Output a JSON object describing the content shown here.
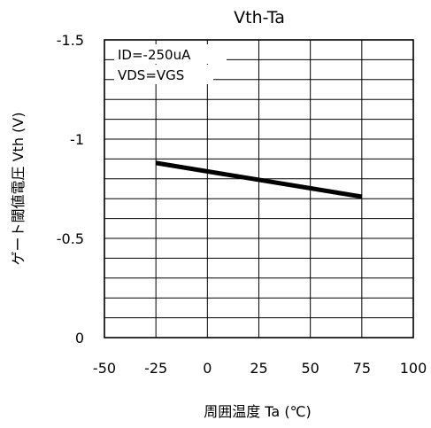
{
  "chart_data": {
    "type": "line",
    "title": "Vth-Ta",
    "xlabel": "周囲温度 Ta (℃)",
    "ylabel": "ゲート閾値電圧 Vth (V)",
    "xlim": [
      -50,
      100
    ],
    "ylim": [
      -1.5,
      0
    ],
    "y_inverted": true,
    "grid": true,
    "x_ticks": [
      "-50",
      "-25",
      "0",
      "25",
      "50",
      "75",
      "100"
    ],
    "x_tick_values": [
      -50,
      -25,
      0,
      25,
      50,
      75,
      100
    ],
    "y_ticks": [
      "-1.5",
      "-1",
      "-0.5",
      "0"
    ],
    "y_tick_values": [
      -1.5,
      -1,
      -0.5,
      0
    ],
    "annotations": [
      "ID=-250uA",
      "VDS=VGS"
    ],
    "series": [
      {
        "x": [
          -25,
          75
        ],
        "y": [
          -0.88,
          -0.71
        ]
      }
    ]
  }
}
